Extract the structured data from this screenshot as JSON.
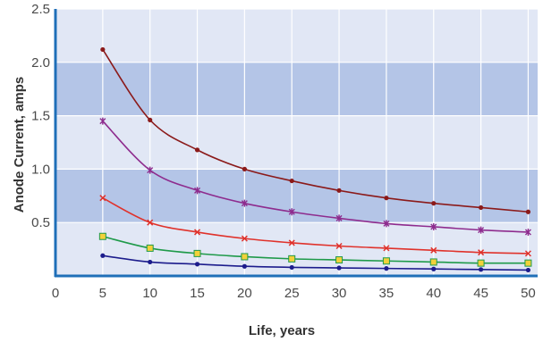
{
  "chart_data": {
    "type": "line",
    "title": "",
    "xlabel": "Life, years",
    "ylabel": "Anode Current, amps",
    "xlim": [
      0,
      51
    ],
    "ylim": [
      0,
      2.5
    ],
    "x_ticks": [
      "0",
      "5",
      "10",
      "15",
      "20",
      "25",
      "30",
      "35",
      "40",
      "45",
      "50"
    ],
    "y_ticks": [
      "0.5",
      "1.0",
      "1.5",
      "2.0",
      "2.5"
    ],
    "grid": true,
    "legend": "none",
    "background_colors": {
      "light": "#e1e7f5",
      "dark": "#b4c5e7",
      "grid": "#ffffff",
      "axis": "#1f6fb8"
    },
    "x": [
      5,
      10,
      15,
      20,
      25,
      30,
      35,
      40,
      45,
      50
    ],
    "series": [
      {
        "color": "#8b1a1a",
        "marker": "dot",
        "values": [
          2.12,
          1.46,
          1.18,
          1.0,
          0.89,
          0.8,
          0.73,
          0.68,
          0.64,
          0.6
        ]
      },
      {
        "color": "#8e2c8e",
        "marker": "star",
        "values": [
          1.45,
          0.99,
          0.8,
          0.68,
          0.6,
          0.54,
          0.49,
          0.46,
          0.43,
          0.41
        ]
      },
      {
        "color": "#e0322b",
        "marker": "x",
        "values": [
          0.73,
          0.5,
          0.41,
          0.35,
          0.31,
          0.28,
          0.26,
          0.24,
          0.22,
          0.21
        ]
      },
      {
        "color": "#1f9a4a",
        "marker": "square",
        "values": [
          0.37,
          0.26,
          0.21,
          0.18,
          0.16,
          0.15,
          0.14,
          0.13,
          0.12,
          0.12
        ]
      },
      {
        "color": "#1c1c8c",
        "marker": "dot",
        "values": [
          0.19,
          0.13,
          0.11,
          0.09,
          0.08,
          0.075,
          0.07,
          0.065,
          0.06,
          0.055
        ]
      }
    ]
  }
}
